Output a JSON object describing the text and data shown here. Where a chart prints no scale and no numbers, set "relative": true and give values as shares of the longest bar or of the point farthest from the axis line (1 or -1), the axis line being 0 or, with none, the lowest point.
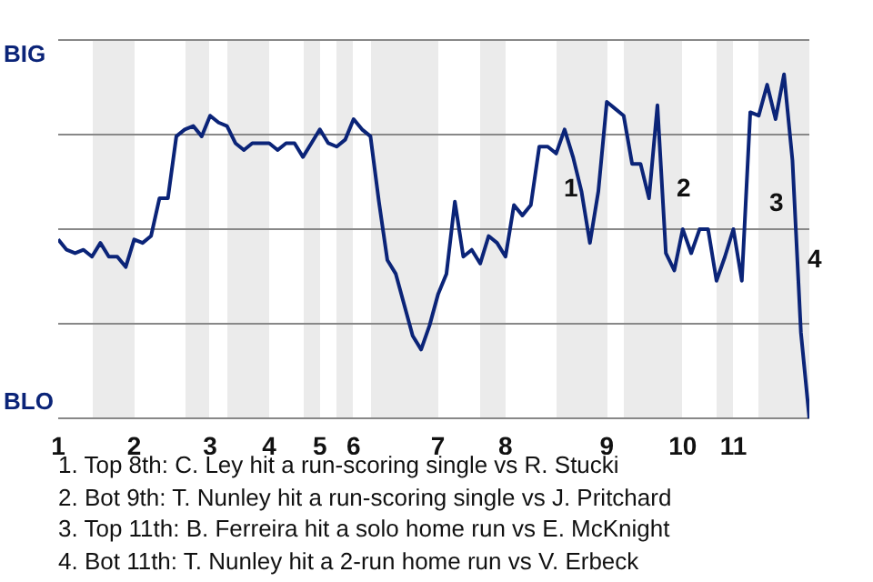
{
  "chart_data": {
    "type": "line",
    "relative": true,
    "categories": [
      "1",
      null,
      null,
      null,
      null,
      null,
      null,
      null,
      null,
      "2",
      null,
      null,
      null,
      null,
      null,
      null,
      null,
      null,
      "3",
      null,
      null,
      null,
      null,
      null,
      null,
      "4",
      null,
      null,
      null,
      null,
      null,
      "5",
      null,
      null,
      null,
      "6",
      null,
      null,
      null,
      null,
      null,
      null,
      null,
      null,
      null,
      "7",
      null,
      null,
      null,
      null,
      null,
      null,
      null,
      "8",
      null,
      null,
      null,
      null,
      null,
      null,
      null,
      null,
      null,
      null,
      null,
      "9",
      null,
      null,
      null,
      null,
      null,
      null,
      null,
      null,
      "10",
      null,
      null,
      null,
      null,
      null,
      "11",
      null,
      null,
      null,
      null,
      null,
      null,
      null,
      null,
      null
    ],
    "series": [
      {
        "color": "#0b2478",
        "values": [
          0.52,
          0.49,
          0.48,
          0.49,
          0.47,
          0.51,
          0.47,
          0.47,
          0.44,
          0.52,
          0.51,
          0.53,
          0.64,
          0.64,
          0.82,
          0.84,
          0.85,
          0.82,
          0.88,
          0.86,
          0.85,
          0.8,
          0.78,
          0.8,
          0.8,
          0.8,
          0.78,
          0.8,
          0.8,
          0.76,
          0.8,
          0.84,
          0.8,
          0.79,
          0.81,
          0.87,
          0.84,
          0.82,
          0.63,
          0.46,
          0.42,
          0.33,
          0.24,
          0.2,
          0.27,
          0.36,
          0.42,
          0.63,
          0.47,
          0.49,
          0.45,
          0.53,
          0.51,
          0.47,
          0.62,
          0.59,
          0.62,
          0.79,
          0.79,
          0.77,
          0.84,
          0.76,
          0.66,
          0.51,
          0.66,
          0.92,
          0.9,
          0.88,
          0.74,
          0.74,
          0.64,
          0.91,
          0.48,
          0.43,
          0.55,
          0.48,
          0.55,
          0.55,
          0.4,
          0.47,
          0.55,
          0.4,
          0.89,
          0.88,
          0.97,
          0.87,
          1,
          0.75,
          0.25,
          0
        ]
      }
    ],
    "grid": "y",
    "marker": "none",
    "line_style": "solid",
    "annotations": [
      "BIG",
      "BLO",
      "1",
      "2",
      "3",
      "4",
      "1. Top 8th: C. Ley hit a run-scoring single vs R. Stucki",
      "2. Bot 9th: T. Nunley hit a run-scoring single vs J. Pritchard",
      "3. Top 11th: B. Ferreira hit a solo home run vs E. McKnight",
      "4. Bot 11th: T. Nunley hit a 2-run home run vs V. Erbeck"
    ]
  }
}
